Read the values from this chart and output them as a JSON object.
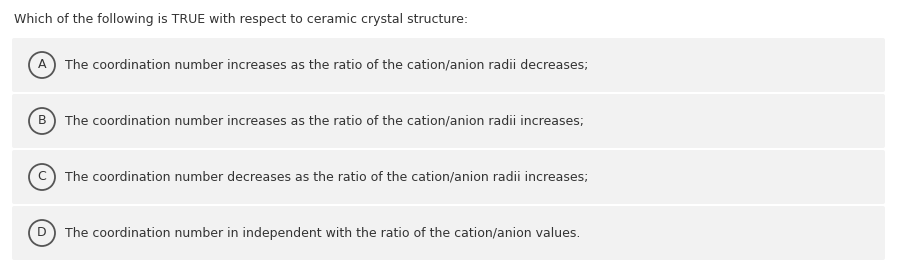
{
  "question": "Which of the following is TRUE with respect to ceramic crystal structure:",
  "options": [
    {
      "label": "A",
      "text": "The coordination number increases as the ratio of the cation/anion radii decreases;"
    },
    {
      "label": "B",
      "text": "The coordination number increases as the ratio of the cation/anion radii increases;"
    },
    {
      "label": "C",
      "text": "The coordination number decreases as the ratio of the cation/anion radii increases;"
    },
    {
      "label": "D",
      "text": "The coordination number in independent with the ratio of the cation/anion values."
    }
  ],
  "background_color": "#ffffff",
  "option_box_color": "#f2f2f2",
  "text_color": "#333333",
  "circle_edge_color": "#555555",
  "question_fontsize": 9.0,
  "option_fontsize": 9.0,
  "label_fontsize": 9.0
}
